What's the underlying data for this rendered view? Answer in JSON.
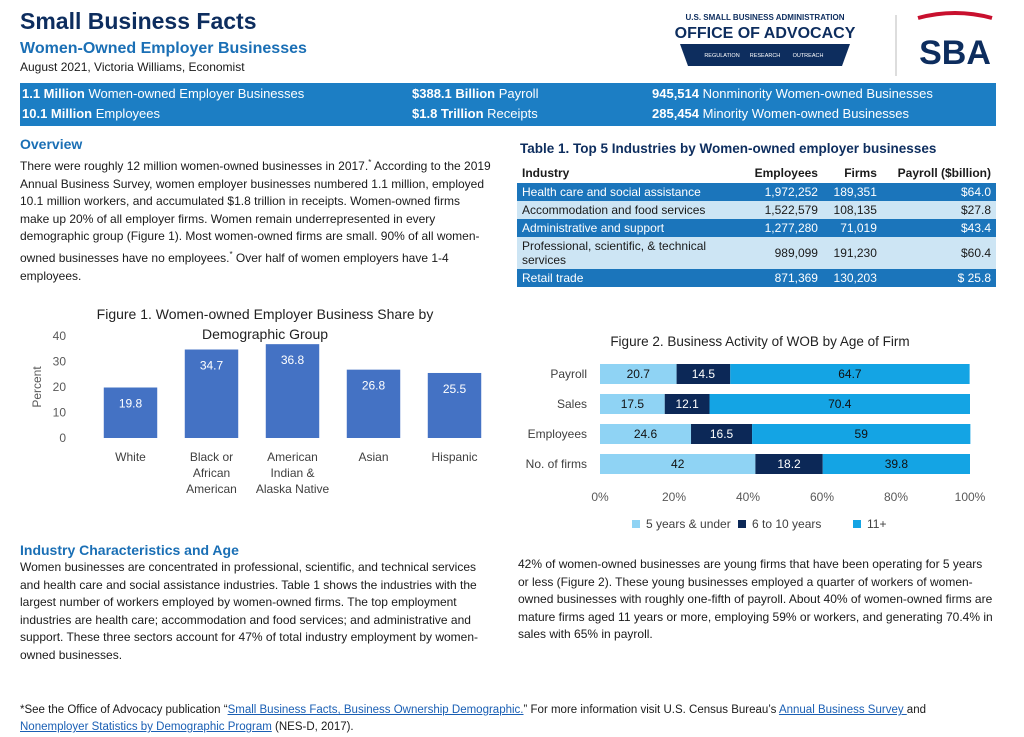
{
  "header": {
    "title": "Small Business Facts",
    "subtitle": "Women-Owned Employer Businesses",
    "byline": "August 2021, Victoria Williams, Economist"
  },
  "logo": {
    "agency": "U.S. SMALL BUSINESS ADMINISTRATION",
    "office": "OFFICE OF ADVOCACY",
    "tagline": [
      "REGULATION",
      "RESEARCH",
      "OUTREACH"
    ],
    "sba": "SBA"
  },
  "banner": [
    {
      "bold": "1.1 Million",
      "text": "Women-owned Employer Businesses"
    },
    {
      "bold": "$388.1 Billion",
      "text": "Payroll"
    },
    {
      "bold": "945,514",
      "text": "Nonminority Women-owned Businesses"
    },
    {
      "bold": "10.1 Million",
      "text": "Employees"
    },
    {
      "bold": "$1.8 Trillion",
      "text": "Receipts"
    },
    {
      "bold": "285,454",
      "text": "Minority Women-owned Businesses"
    }
  ],
  "overview": {
    "heading": "Overview",
    "parts": [
      {
        "text": "There were roughly 12 million women-owned businesses in 2017.",
        "sup": false
      },
      {
        "text": "*",
        "sup": true
      },
      {
        "text": " According to the 2019 Annual Business Survey, women employer businesses numbered 1.1 million, employed 10.1 million workers, and accumulated $1.8 trillion in receipts. Women-owned firms make up 20% of all employer firms. Women remain underrepresented in every demographic group (Figure 1). Most women-owned firms are small. 90% of all women-owned businesses have no employees.",
        "sup": false
      },
      {
        "text": "*",
        "sup": true
      },
      {
        "text": " Over half of women employers have 1-4 employees.",
        "sup": false
      }
    ]
  },
  "table": {
    "title": "Table 1. Top 5 Industries by Women-owned employer businesses",
    "columns": [
      "Industry",
      "Employees",
      "Firms",
      "Payroll ($billion)"
    ],
    "rows": [
      [
        "Health care and social assistance",
        "1,972,252",
        "189,351",
        "$64.0"
      ],
      [
        "Accommodation and food services",
        "1,522,579",
        "108,135",
        "$27.8"
      ],
      [
        "Administrative and support",
        "1,277,280",
        "71,019",
        "$43.4"
      ],
      [
        "Professional, scientific, & technical services",
        "989,099",
        "191,230",
        "$60.4"
      ],
      [
        "Retail trade",
        "871,369",
        "130,203",
        "$ 25.8"
      ]
    ]
  },
  "charts": [
    {
      "type": "bar",
      "title": "Figure 1. Women-owned Employer Business Share by Demographic Group",
      "ylabel": "Percent",
      "categories": [
        "White",
        "Black or African American",
        "American Indian & Alaska Native",
        "Asian",
        "Hispanic"
      ],
      "values": [
        19.8,
        34.7,
        36.8,
        26.8,
        25.5
      ],
      "color": "#4472c4",
      "ylim": [
        0,
        40
      ],
      "yticks": [
        0,
        10,
        20,
        30,
        40
      ],
      "grid": false
    },
    {
      "type": "stacked-hbar",
      "title": "Figure 2. Business Activity of WOB by Age of Firm",
      "categories": [
        "Payroll",
        "Sales",
        "Employees",
        "No. of firms"
      ],
      "series": [
        {
          "name": "5 years & under",
          "color": "#8fd3f4",
          "values": [
            20.7,
            17.5,
            24.6,
            42.0
          ]
        },
        {
          "name": "6 to 10 years",
          "color": "#0c2857",
          "values": [
            14.5,
            12.1,
            16.5,
            18.2
          ]
        },
        {
          "name": "11+",
          "color": "#14a4e4",
          "values": [
            64.7,
            70.4,
            59.0,
            39.8
          ]
        }
      ],
      "xlim": [
        0,
        100
      ],
      "xticks": [
        {
          "value": 0,
          "label": "0%"
        },
        {
          "value": 20,
          "label": "20%"
        },
        {
          "value": 40,
          "label": "40%"
        },
        {
          "value": 60,
          "label": "60%"
        },
        {
          "value": 80,
          "label": "80%"
        },
        {
          "value": 100,
          "label": "100%"
        }
      ],
      "legend": "bottom",
      "grid": false
    }
  ],
  "industry": {
    "heading": "Industry Characteristics and Age",
    "text": "Women businesses are concentrated in professional, scientific, and technical services and health care and social assistance industries. Table 1 shows the industries with the largest number of workers employed by women-owned firms. The top employment industries are health care; accommodation and food services; and administrative and support. These three sectors account for 47% of total industry employment by women-owned businesses."
  },
  "age": {
    "text": "42% of women-owned businesses are young firms that have been operating for 5 years or less (Figure 2). These young businesses employed a quarter of workers of women-owned businesses with roughly one-fifth of payroll. About 40% of women-owned firms are mature firms aged 11 years or more, employing 59% or workers, and generating 70.4% in sales with 65% in payroll."
  },
  "footnote": {
    "parts": [
      {
        "text": "*See the Office of Advocacy publication “",
        "link": false
      },
      {
        "text": "Small Business Facts, Business Ownership Demographic.",
        "link": true
      },
      {
        "text": "”  For more information visit U.S. Census Bureau’s ",
        "link": false
      },
      {
        "text": "Annual Business Survey ",
        "link": true
      },
      {
        "text": "and ",
        "link": false
      },
      {
        "text": "Nonemployer Statistics by Demographic Program",
        "link": true
      },
      {
        "text": " (NES-D, 2017).",
        "link": false
      }
    ]
  }
}
